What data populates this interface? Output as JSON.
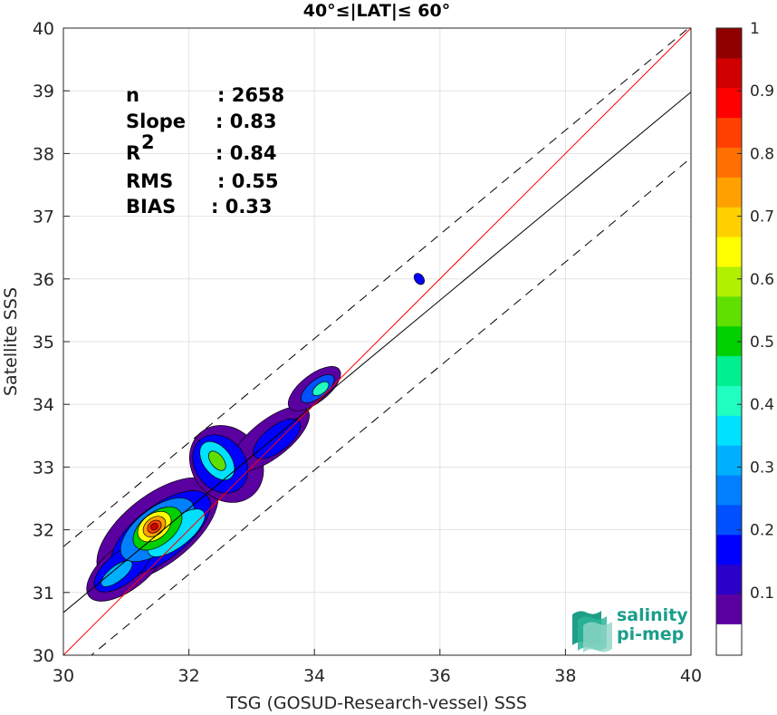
{
  "chart_data": {
    "type": "contour",
    "title": "40°≤|LAT|≤ 60°",
    "xlabel": "TSG (GOSUD-Research-vessel) SSS",
    "ylabel": "Satellite SSS",
    "xlim": [
      30,
      40
    ],
    "ylim": [
      30,
      40
    ],
    "xticks": [
      "30",
      "32",
      "34",
      "36",
      "38",
      "40"
    ],
    "yticks": [
      "30",
      "31",
      "32",
      "33",
      "34",
      "35",
      "36",
      "37",
      "38",
      "39",
      "40"
    ],
    "grid": true,
    "stats": [
      {
        "label": "n",
        "value": ": 2658"
      },
      {
        "label": "Slope",
        "value": ": 0.83"
      },
      {
        "label": "R",
        "sup": "2",
        "value": ": 0.84"
      },
      {
        "label": "RMS",
        "value": ": 0.55"
      },
      {
        "label": "BIAS",
        "value": ": 0.33"
      }
    ],
    "lines": {
      "identity": {
        "x": [
          30,
          40
        ],
        "y": [
          30,
          40
        ],
        "color": "#ff0000"
      },
      "fit": {
        "x": [
          30,
          40
        ],
        "y": [
          30.68,
          38.98
        ],
        "color": "#000000"
      },
      "upper_band": {
        "x": [
          30,
          40
        ],
        "y": [
          31.73,
          40.03
        ],
        "color": "#000000",
        "dash": true
      },
      "lower_band": {
        "x": [
          30,
          40
        ],
        "y": [
          29.63,
          37.93
        ],
        "color": "#000000",
        "dash": true
      }
    },
    "blobs": [
      {
        "cx": 31.5,
        "cy": 32.0,
        "rx": 1.15,
        "ry": 0.55,
        "level": 0.06
      },
      {
        "cx": 31.0,
        "cy": 31.4,
        "rx": 0.75,
        "ry": 0.35,
        "level": 0.06
      },
      {
        "cx": 32.6,
        "cy": 33.05,
        "rx": 0.55,
        "ry": 0.65,
        "level": 0.06
      },
      {
        "cx": 33.3,
        "cy": 33.45,
        "rx": 0.75,
        "ry": 0.3,
        "level": 0.06
      },
      {
        "cx": 34.0,
        "cy": 34.25,
        "rx": 0.5,
        "ry": 0.22,
        "level": 0.06
      },
      {
        "cx": 35.67,
        "cy": 36.0,
        "rx": 0.07,
        "ry": 0.1,
        "level": 0.15
      },
      {
        "cx": 31.55,
        "cy": 31.95,
        "rx": 0.95,
        "ry": 0.42,
        "level": 0.16
      },
      {
        "cx": 30.95,
        "cy": 31.4,
        "rx": 0.55,
        "ry": 0.25,
        "level": 0.16
      },
      {
        "cx": 32.5,
        "cy": 33.05,
        "rx": 0.4,
        "ry": 0.5,
        "level": 0.16
      },
      {
        "cx": 33.4,
        "cy": 33.45,
        "rx": 0.45,
        "ry": 0.2,
        "level": 0.16
      },
      {
        "cx": 34.05,
        "cy": 34.25,
        "rx": 0.32,
        "ry": 0.14,
        "level": 0.2
      },
      {
        "cx": 31.5,
        "cy": 32.0,
        "rx": 0.7,
        "ry": 0.34,
        "level": 0.28
      },
      {
        "cx": 31.8,
        "cy": 31.95,
        "rx": 0.55,
        "ry": 0.22,
        "level": 0.35
      },
      {
        "cx": 32.45,
        "cy": 33.1,
        "rx": 0.22,
        "ry": 0.35,
        "level": 0.35
      },
      {
        "cx": 30.85,
        "cy": 31.3,
        "rx": 0.3,
        "ry": 0.12,
        "level": 0.3
      },
      {
        "cx": 34.1,
        "cy": 34.25,
        "rx": 0.15,
        "ry": 0.08,
        "level": 0.42
      },
      {
        "cx": 31.5,
        "cy": 32.02,
        "rx": 0.45,
        "ry": 0.26,
        "level": 0.5
      },
      {
        "cx": 32.45,
        "cy": 33.1,
        "rx": 0.1,
        "ry": 0.18,
        "level": 0.55
      },
      {
        "cx": 31.45,
        "cy": 32.05,
        "rx": 0.3,
        "ry": 0.2,
        "level": 0.65
      },
      {
        "cx": 31.45,
        "cy": 32.05,
        "rx": 0.2,
        "ry": 0.14,
        "level": 0.75
      },
      {
        "cx": 31.45,
        "cy": 32.05,
        "rx": 0.12,
        "ry": 0.09,
        "level": 0.85
      },
      {
        "cx": 31.45,
        "cy": 32.05,
        "rx": 0.06,
        "ry": 0.05,
        "level": 0.95
      }
    ],
    "colorbar": {
      "ticks": [
        "0.1",
        "0.2",
        "0.3",
        "0.4",
        "0.5",
        "0.6",
        "0.7",
        "0.8",
        "0.9",
        "1"
      ],
      "min": 0.05,
      "max": 1,
      "bottom_band_color": "#ffffff",
      "colors": [
        "#5a00a0",
        "#2b00c8",
        "#0000ff",
        "#0050ff",
        "#0080ff",
        "#00b0ff",
        "#00e0ff",
        "#20ffc0",
        "#00f090",
        "#00d000",
        "#60e000",
        "#b0f000",
        "#ffff00",
        "#ffd000",
        "#ffa000",
        "#ff7000",
        "#ff4000",
        "#ff0000",
        "#d00000",
        "#900000"
      ]
    }
  },
  "logo": {
    "line1": "salinity",
    "line2": "pi-mep"
  }
}
